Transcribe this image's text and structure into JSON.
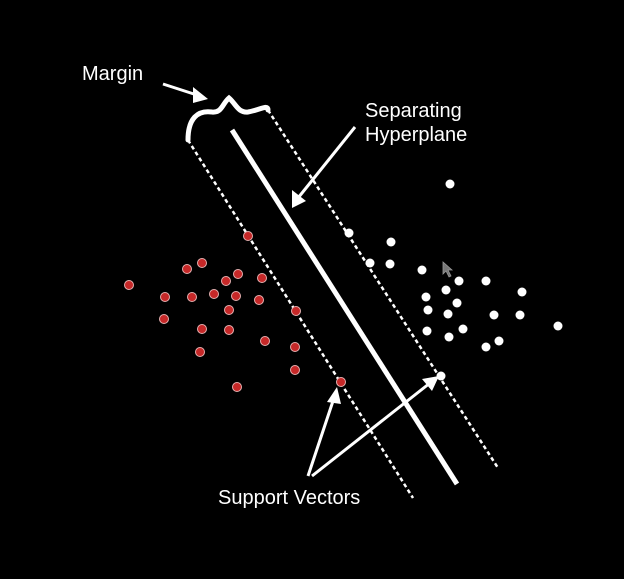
{
  "labels": {
    "margin": "Margin",
    "hyperplane_line1": "Separating",
    "hyperplane_line2": "Hyperplane",
    "support_vectors": "Support Vectors"
  },
  "colors": {
    "background": "#000000",
    "foreground": "#ffffff",
    "class_a": "#c62828",
    "class_a_stroke": "#e6b0b0",
    "class_b": "#ffffff"
  },
  "icons": {
    "brace": "curly-brace",
    "pointer": "cursor-arrow"
  }
}
